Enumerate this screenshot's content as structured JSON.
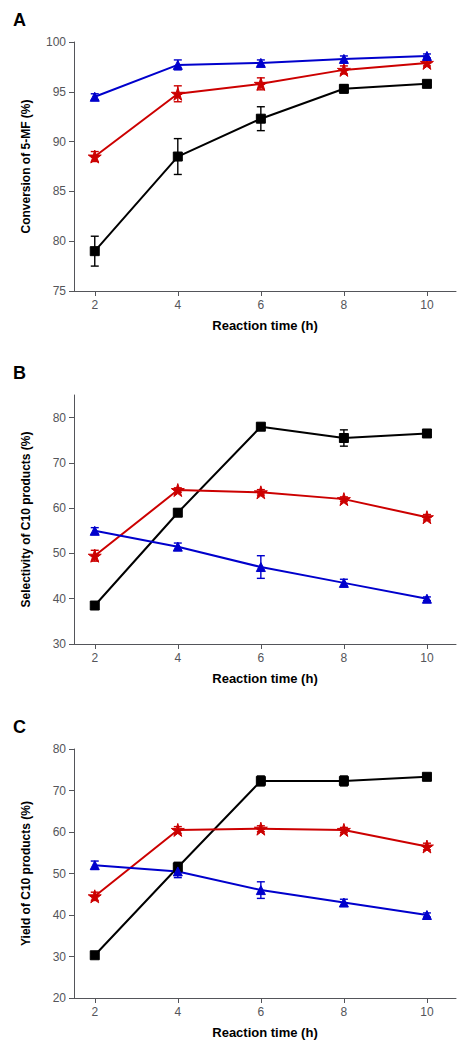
{
  "chart_data": [
    {
      "type": "line",
      "title": "A",
      "xlabel": "Reaction time (h)",
      "ylabel": "Conversion of 5-MF (%)",
      "x": [
        2,
        4,
        6,
        8,
        10
      ],
      "xlim": [
        1.5,
        10.7
      ],
      "xticks": [
        2,
        4,
        6,
        8,
        10
      ],
      "ylim": [
        75,
        100
      ],
      "yticks": [
        75,
        80,
        85,
        90,
        95,
        100
      ],
      "grid": false,
      "series": [
        {
          "color": "#000000",
          "marker": "square",
          "values": [
            79.0,
            88.5,
            92.3,
            95.3,
            95.8
          ],
          "errors": [
            1.5,
            1.8,
            1.2,
            0.4,
            0.3
          ]
        },
        {
          "color": "#cc0000",
          "marker": "star",
          "values": [
            88.5,
            94.8,
            95.8,
            97.2,
            97.9
          ],
          "errors": [
            0.5,
            0.8,
            0.6,
            0.4,
            0.3
          ]
        },
        {
          "color": "#0000cc",
          "marker": "triangle",
          "values": [
            94.5,
            97.7,
            97.9,
            98.3,
            98.6
          ],
          "errors": [
            0.3,
            0.5,
            0.3,
            0.3,
            0.2
          ]
        }
      ]
    },
    {
      "type": "line",
      "title": "B",
      "xlabel": "Reaction time (h)",
      "ylabel": "Selectivity of C10 products (%)",
      "x": [
        2,
        4,
        6,
        8,
        10
      ],
      "xlim": [
        1.5,
        10.7
      ],
      "xticks": [
        2,
        4,
        6,
        8,
        10
      ],
      "ylim": [
        30,
        85
      ],
      "yticks": [
        30,
        40,
        50,
        60,
        70,
        80
      ],
      "grid": false,
      "series": [
        {
          "color": "#000000",
          "marker": "square",
          "values": [
            38.5,
            59.0,
            78.0,
            75.5,
            76.5
          ],
          "errors": [
            0.5,
            0.8,
            0.7,
            1.8,
            0.5
          ]
        },
        {
          "color": "#cc0000",
          "marker": "star",
          "values": [
            49.5,
            64.0,
            63.5,
            62.0,
            58.0
          ],
          "errors": [
            1.2,
            0.5,
            0.6,
            0.5,
            0.6
          ]
        },
        {
          "color": "#0000cc",
          "marker": "triangle",
          "values": [
            55.0,
            51.5,
            47.0,
            43.5,
            40.0
          ],
          "errors": [
            0.7,
            0.8,
            2.5,
            0.8,
            0.4
          ]
        }
      ]
    },
    {
      "type": "line",
      "title": "C",
      "xlabel": "Reaction time (h)",
      "ylabel": "Yield of C10 products (%)",
      "x": [
        2,
        4,
        6,
        8,
        10
      ],
      "xlim": [
        1.5,
        10.7
      ],
      "xticks": [
        2,
        4,
        6,
        8,
        10
      ],
      "ylim": [
        20,
        80
      ],
      "yticks": [
        20,
        30,
        40,
        50,
        60,
        70,
        80
      ],
      "grid": false,
      "series": [
        {
          "color": "#000000",
          "marker": "square",
          "values": [
            30.3,
            51.5,
            72.3,
            72.3,
            73.3
          ],
          "errors": [
            0.4,
            1.2,
            1.2,
            1.2,
            0.5
          ]
        },
        {
          "color": "#cc0000",
          "marker": "star",
          "values": [
            44.5,
            60.5,
            60.8,
            60.5,
            56.5
          ],
          "errors": [
            1.0,
            0.8,
            0.7,
            0.6,
            0.8
          ]
        },
        {
          "color": "#0000cc",
          "marker": "triangle",
          "values": [
            52.0,
            50.5,
            46.0,
            43.0,
            40.0
          ],
          "errors": [
            1.0,
            1.5,
            2.0,
            0.8,
            0.5
          ]
        }
      ]
    }
  ]
}
